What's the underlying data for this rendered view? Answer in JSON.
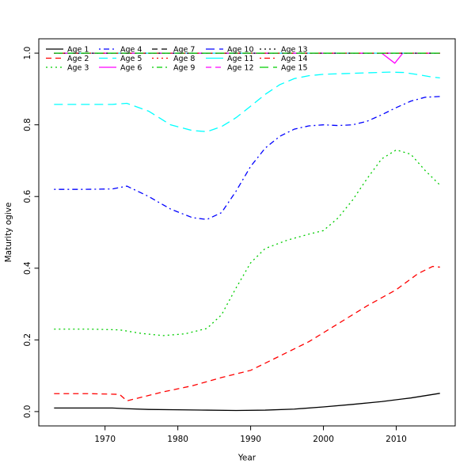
{
  "figure": {
    "background": "#ffffff",
    "border_color": "#000000"
  },
  "chart_data": {
    "type": "line",
    "title": "",
    "xlabel": "Year",
    "ylabel": "Maturity ogive",
    "x_ticks": [
      1970,
      1980,
      1990,
      2000,
      2010
    ],
    "x_tick_labels": [
      "1970",
      "1980",
      "1990",
      "2000",
      "2010"
    ],
    "y_ticks": [
      0.0,
      0.2,
      0.4,
      0.6,
      0.8,
      1.0
    ],
    "y_tick_labels": [
      "0.0",
      "0.2",
      "0.4",
      "0.6",
      "0.8",
      "1.0"
    ],
    "x_data_range": [
      1963,
      2016
    ],
    "axis_range": {
      "x": [
        1960.9,
        2018.1
      ],
      "y": [
        -0.04,
        1.04
      ]
    },
    "grid": false,
    "legend": {
      "position": "top-inside",
      "ncol": 5,
      "nrow": 3,
      "order": "column-major",
      "border": false
    },
    "series": [
      {
        "name": "Age 1",
        "color": "#000000",
        "linetype": "solid",
        "points": [
          [
            1963,
            0.01
          ],
          [
            1966,
            0.01
          ],
          [
            1969,
            0.01
          ],
          [
            1971,
            0.01
          ],
          [
            1973,
            0.008
          ],
          [
            1976,
            0.006
          ],
          [
            1980,
            0.005
          ],
          [
            1984,
            0.004
          ],
          [
            1988,
            0.003
          ],
          [
            1992,
            0.004
          ],
          [
            1996,
            0.007
          ],
          [
            2000,
            0.013
          ],
          [
            2004,
            0.02
          ],
          [
            2008,
            0.028
          ],
          [
            2012,
            0.038
          ],
          [
            2016,
            0.051
          ]
        ]
      },
      {
        "name": "Age 2",
        "color": "#FF0000",
        "linetype": "dashed",
        "points": [
          [
            1963,
            0.05
          ],
          [
            1968,
            0.05
          ],
          [
            1972,
            0.048
          ],
          [
            1973,
            0.03
          ],
          [
            1975,
            0.04
          ],
          [
            1978,
            0.055
          ],
          [
            1982,
            0.072
          ],
          [
            1986,
            0.095
          ],
          [
            1990,
            0.115
          ],
          [
            1994,
            0.155
          ],
          [
            1998,
            0.195
          ],
          [
            2002,
            0.245
          ],
          [
            2006,
            0.295
          ],
          [
            2010,
            0.34
          ],
          [
            2013,
            0.385
          ],
          [
            2015,
            0.405
          ],
          [
            2016,
            0.403
          ]
        ]
      },
      {
        "name": "Age 3",
        "color": "#00CD00",
        "linetype": "dotted",
        "points": [
          [
            1963,
            0.23
          ],
          [
            1968,
            0.23
          ],
          [
            1972,
            0.228
          ],
          [
            1975,
            0.218
          ],
          [
            1978,
            0.212
          ],
          [
            1981,
            0.217
          ],
          [
            1984,
            0.232
          ],
          [
            1986,
            0.27
          ],
          [
            1988,
            0.345
          ],
          [
            1990,
            0.415
          ],
          [
            1992,
            0.455
          ],
          [
            1995,
            0.478
          ],
          [
            1998,
            0.495
          ],
          [
            2000,
            0.505
          ],
          [
            2002,
            0.54
          ],
          [
            2004,
            0.59
          ],
          [
            2006,
            0.65
          ],
          [
            2008,
            0.705
          ],
          [
            2010,
            0.73
          ],
          [
            2012,
            0.718
          ],
          [
            2014,
            0.672
          ],
          [
            2016,
            0.632
          ]
        ]
      },
      {
        "name": "Age 4",
        "color": "#0000FF",
        "linetype": "dotdash",
        "points": [
          [
            1963,
            0.62
          ],
          [
            1967,
            0.62
          ],
          [
            1971,
            0.621
          ],
          [
            1973,
            0.629
          ],
          [
            1976,
            0.6
          ],
          [
            1979,
            0.565
          ],
          [
            1982,
            0.541
          ],
          [
            1984,
            0.536
          ],
          [
            1986,
            0.555
          ],
          [
            1988,
            0.615
          ],
          [
            1990,
            0.684
          ],
          [
            1992,
            0.735
          ],
          [
            1994,
            0.768
          ],
          [
            1996,
            0.788
          ],
          [
            1998,
            0.797
          ],
          [
            2000,
            0.8
          ],
          [
            2002,
            0.798
          ],
          [
            2004,
            0.8
          ],
          [
            2006,
            0.81
          ],
          [
            2008,
            0.828
          ],
          [
            2010,
            0.848
          ],
          [
            2012,
            0.866
          ],
          [
            2014,
            0.877
          ],
          [
            2016,
            0.879
          ]
        ]
      },
      {
        "name": "Age 5",
        "color": "#00FFFF",
        "linetype": "longdash",
        "points": [
          [
            1963,
            0.857
          ],
          [
            1967,
            0.857
          ],
          [
            1971,
            0.857
          ],
          [
            1973,
            0.86
          ],
          [
            1976,
            0.838
          ],
          [
            1979,
            0.8
          ],
          [
            1982,
            0.784
          ],
          [
            1984,
            0.781
          ],
          [
            1986,
            0.795
          ],
          [
            1988,
            0.82
          ],
          [
            1990,
            0.852
          ],
          [
            1992,
            0.885
          ],
          [
            1994,
            0.912
          ],
          [
            1996,
            0.929
          ],
          [
            1998,
            0.937
          ],
          [
            2000,
            0.941
          ],
          [
            2003,
            0.943
          ],
          [
            2006,
            0.945
          ],
          [
            2009,
            0.947
          ],
          [
            2011,
            0.946
          ],
          [
            2013,
            0.94
          ],
          [
            2015,
            0.933
          ],
          [
            2016,
            0.931
          ]
        ]
      },
      {
        "name": "Age 6",
        "color": "#FF00FF",
        "linetype": "solid",
        "points": [
          [
            1963,
            1.0
          ],
          [
            2008,
            1.0
          ],
          [
            2009.8,
            0.972
          ],
          [
            2010.9,
            1.0
          ],
          [
            2016,
            1.0
          ]
        ]
      },
      {
        "name": "Age 7",
        "color": "#000000",
        "linetype": "dashed",
        "points": [
          [
            1963,
            1.0
          ],
          [
            2016,
            1.0
          ]
        ]
      },
      {
        "name": "Age 8",
        "color": "#FF0000",
        "linetype": "dotted",
        "points": [
          [
            1963,
            1.0
          ],
          [
            2016,
            1.0
          ]
        ]
      },
      {
        "name": "Age 9",
        "color": "#00CD00",
        "linetype": "dotdash",
        "points": [
          [
            1963,
            1.0
          ],
          [
            2016,
            1.0
          ]
        ]
      },
      {
        "name": "Age 10",
        "color": "#0000FF",
        "linetype": "longdash",
        "points": [
          [
            1963,
            1.0
          ],
          [
            2016,
            1.0
          ]
        ]
      },
      {
        "name": "Age 11",
        "color": "#00FFFF",
        "linetype": "solid",
        "points": [
          [
            1963,
            1.0
          ],
          [
            2016,
            1.0
          ]
        ]
      },
      {
        "name": "Age 12",
        "color": "#FF00FF",
        "linetype": "dashed",
        "points": [
          [
            1963,
            1.0
          ],
          [
            2016,
            1.0
          ]
        ]
      },
      {
        "name": "Age 13",
        "color": "#000000",
        "linetype": "dotted",
        "points": [
          [
            1963,
            1.0
          ],
          [
            2016,
            1.0
          ]
        ]
      },
      {
        "name": "Age 14",
        "color": "#FF0000",
        "linetype": "dotdash",
        "points": [
          [
            1963,
            1.0
          ],
          [
            2016,
            1.0
          ]
        ]
      },
      {
        "name": "Age 15",
        "color": "#00CD00",
        "linetype": "longdash",
        "points": [
          [
            1963,
            1.0
          ],
          [
            2016,
            1.0
          ]
        ]
      }
    ]
  }
}
